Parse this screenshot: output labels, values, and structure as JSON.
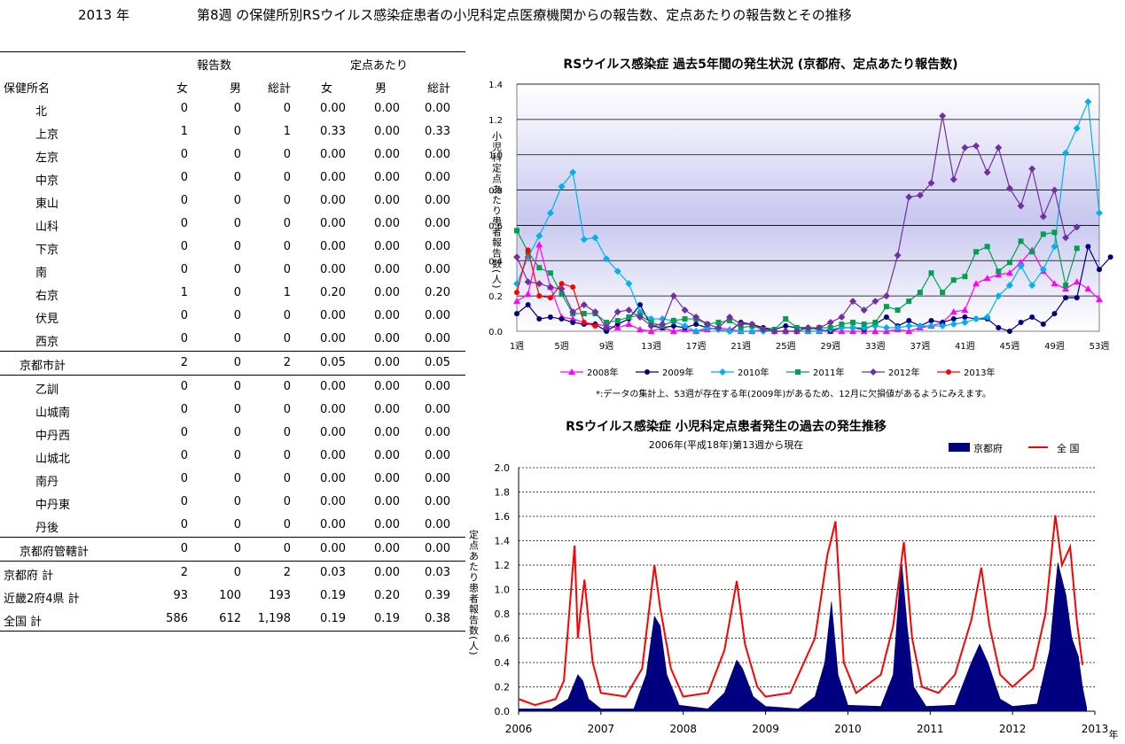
{
  "header": {
    "year": "2013 年",
    "title": "第8週 の保健所別RSウイルス感染症患者の小児科定点医療機関からの報告数、定点あたりの報告数とその推移"
  },
  "table": {
    "group_counts": "報告数",
    "group_rates": "定点あたり",
    "columns": [
      "保健所名",
      "女",
      "男",
      "総計",
      "女",
      "男",
      "総計"
    ],
    "rows": [
      {
        "name": "北",
        "vals": [
          "0",
          "0",
          "0",
          "0.00",
          "0.00",
          "0.00"
        ]
      },
      {
        "name": "上京",
        "vals": [
          "1",
          "0",
          "1",
          "0.33",
          "0.00",
          "0.33"
        ]
      },
      {
        "name": "左京",
        "vals": [
          "0",
          "0",
          "0",
          "0.00",
          "0.00",
          "0.00"
        ]
      },
      {
        "name": "中京",
        "vals": [
          "0",
          "0",
          "0",
          "0.00",
          "0.00",
          "0.00"
        ]
      },
      {
        "name": "東山",
        "vals": [
          "0",
          "0",
          "0",
          "0.00",
          "0.00",
          "0.00"
        ]
      },
      {
        "name": "山科",
        "vals": [
          "0",
          "0",
          "0",
          "0.00",
          "0.00",
          "0.00"
        ]
      },
      {
        "name": "下京",
        "vals": [
          "0",
          "0",
          "0",
          "0.00",
          "0.00",
          "0.00"
        ]
      },
      {
        "name": "南",
        "vals": [
          "0",
          "0",
          "0",
          "0.00",
          "0.00",
          "0.00"
        ]
      },
      {
        "name": "右京",
        "vals": [
          "1",
          "0",
          "1",
          "0.20",
          "0.00",
          "0.20"
        ]
      },
      {
        "name": "伏見",
        "vals": [
          "0",
          "0",
          "0",
          "0.00",
          "0.00",
          "0.00"
        ]
      },
      {
        "name": "西京",
        "vals": [
          "0",
          "0",
          "0",
          "0.00",
          "0.00",
          "0.00"
        ]
      },
      {
        "name": "京都市計",
        "vals": [
          "2",
          "0",
          "2",
          "0.05",
          "0.00",
          "0.05"
        ]
      },
      {
        "name": "乙訓",
        "vals": [
          "0",
          "0",
          "0",
          "0.00",
          "0.00",
          "0.00"
        ]
      },
      {
        "name": "山城南",
        "vals": [
          "0",
          "0",
          "0",
          "0.00",
          "0.00",
          "0.00"
        ]
      },
      {
        "name": "中丹西",
        "vals": [
          "0",
          "0",
          "0",
          "0.00",
          "0.00",
          "0.00"
        ]
      },
      {
        "name": "山城北",
        "vals": [
          "0",
          "0",
          "0",
          "0.00",
          "0.00",
          "0.00"
        ]
      },
      {
        "name": "南丹",
        "vals": [
          "0",
          "0",
          "0",
          "0.00",
          "0.00",
          "0.00"
        ]
      },
      {
        "name": "中丹東",
        "vals": [
          "0",
          "0",
          "0",
          "0.00",
          "0.00",
          "0.00"
        ]
      },
      {
        "name": "丹後",
        "vals": [
          "0",
          "0",
          "0",
          "0.00",
          "0.00",
          "0.00"
        ]
      },
      {
        "name": "京都府管轄計",
        "vals": [
          "0",
          "0",
          "0",
          "0.00",
          "0.00",
          "0.00"
        ]
      },
      {
        "name": "京都府 計",
        "vals": [
          "2",
          "0",
          "2",
          "0.03",
          "0.00",
          "0.03"
        ]
      },
      {
        "name": "近畿2府4県 計",
        "vals": [
          "93",
          "100",
          "193",
          "0.19",
          "0.20",
          "0.39"
        ]
      },
      {
        "name": "全国 計",
        "vals": [
          "586",
          "612",
          "1,198",
          "0.19",
          "0.19",
          "0.38"
        ]
      }
    ]
  },
  "chart_data": [
    {
      "type": "line",
      "title": "RSウイルス感染症 過去5年間の発生状況 (京都府、定点あたり報告数)",
      "ylabel": "小児科定点あたり患者報告数(人)",
      "ylim": [
        0,
        1.4
      ],
      "yticks": [
        "0.0",
        "0.2",
        "0.4",
        "0.6",
        "0.8",
        "1.0",
        "1.2",
        "1.4"
      ],
      "xlim": [
        1,
        53
      ],
      "xticks": [
        1,
        5,
        9,
        13,
        17,
        21,
        25,
        29,
        33,
        37,
        41,
        45,
        49,
        53
      ],
      "xtick_labels": [
        "1週",
        "5週",
        "9週",
        "13週",
        "17週",
        "21週",
        "25週",
        "29週",
        "33週",
        "37週",
        "41週",
        "45週",
        "49週",
        "53週"
      ],
      "grid": true,
      "legend_position": "bottom",
      "note": "*:データの集計上、53週が存在する年(2009年)があるため、12月に欠損値があるようにみえます。",
      "series": [
        {
          "name": "2008年",
          "color": "#ff00ff",
          "marker": "triangle",
          "values": [
            0.17,
            0.21,
            0.49,
            0.25,
            0.08,
            0.07,
            0.05,
            0.04,
            0.03,
            0.02,
            0.04,
            0.01,
            0.0,
            0.02,
            0.0,
            0.01,
            0.0,
            0.01,
            0.02,
            0.01,
            0.0,
            0.0,
            0.01,
            0.0,
            0.0,
            0.0,
            0.0,
            0.0,
            0.0,
            0.0,
            0.0,
            0.0,
            0.0,
            0.0,
            0.01,
            0.0,
            0.02,
            0.03,
            0.05,
            0.11,
            0.12,
            0.27,
            0.3,
            0.32,
            0.33,
            0.39,
            0.46,
            0.34,
            0.27,
            0.24,
            0.28,
            0.24,
            0.18
          ]
        },
        {
          "name": "2009年",
          "color": "#000080",
          "marker": "circle",
          "values": [
            0.1,
            0.15,
            0.07,
            0.08,
            0.07,
            0.05,
            0.04,
            0.04,
            0.0,
            0.04,
            0.07,
            0.15,
            0.03,
            0.02,
            0.03,
            0.02,
            0.04,
            0.02,
            0.01,
            0.0,
            0.05,
            0.04,
            0.02,
            0.01,
            0.03,
            0.02,
            0.02,
            0.01,
            0.0,
            0.02,
            0.02,
            0.01,
            0.04,
            0.08,
            0.03,
            0.06,
            0.03,
            0.06,
            0.05,
            0.07,
            0.08,
            0.07,
            0.07,
            0.02,
            0.0,
            0.05,
            0.08,
            0.04,
            0.1,
            0.19,
            0.19,
            0.48,
            0.35,
            0.42
          ]
        },
        {
          "name": "2010年",
          "color": "#00b0f0",
          "marker": "diamond",
          "values": [
            0.27,
            0.42,
            0.54,
            0.67,
            0.82,
            0.9,
            0.52,
            0.53,
            0.41,
            0.34,
            0.27,
            0.11,
            0.07,
            0.07,
            0.06,
            0.03,
            0.0,
            0.02,
            0.01,
            0.0,
            0.0,
            0.0,
            0.0,
            0.0,
            0.0,
            0.0,
            0.0,
            0.0,
            0.01,
            0.02,
            0.02,
            0.02,
            0.03,
            0.02,
            0.02,
            0.03,
            0.03,
            0.03,
            0.03,
            0.04,
            0.05,
            0.07,
            0.08,
            0.2,
            0.26,
            0.37,
            0.26,
            0.35,
            0.48,
            1.01,
            1.15,
            1.3,
            0.67
          ]
        },
        {
          "name": "2011年",
          "color": "#00a050",
          "marker": "square",
          "values": [
            0.57,
            0.45,
            0.36,
            0.33,
            0.21,
            0.1,
            0.1,
            0.1,
            0.05,
            0.06,
            0.08,
            0.09,
            0.05,
            0.03,
            0.06,
            0.07,
            0.07,
            0.04,
            0.05,
            0.06,
            0.02,
            0.03,
            0.01,
            0.01,
            0.07,
            0.02,
            0.01,
            0.02,
            0.02,
            0.04,
            0.05,
            0.04,
            0.05,
            0.14,
            0.12,
            0.17,
            0.22,
            0.33,
            0.22,
            0.29,
            0.31,
            0.45,
            0.48,
            0.34,
            0.39,
            0.51,
            0.45,
            0.55,
            0.56,
            0.26,
            0.47
          ]
        },
        {
          "name": "2012年",
          "color": "#7030a0",
          "marker": "diamond",
          "values": [
            0.42,
            0.28,
            0.27,
            0.25,
            0.24,
            0.11,
            0.15,
            0.11,
            0.02,
            0.11,
            0.12,
            0.08,
            0.03,
            0.04,
            0.2,
            0.12,
            0.08,
            0.04,
            0.02,
            0.08,
            0.04,
            0.04,
            0.01,
            0.0,
            0.0,
            0.0,
            0.02,
            0.02,
            0.05,
            0.08,
            0.17,
            0.12,
            0.17,
            0.2,
            0.43,
            0.76,
            0.77,
            0.84,
            1.22,
            0.86,
            1.04,
            1.05,
            0.9,
            1.04,
            0.81,
            0.71,
            0.92,
            0.65,
            0.8,
            0.53,
            0.59
          ]
        },
        {
          "name": "2013年",
          "color": "#ff0000",
          "marker": "circle",
          "values": [
            0.22,
            0.46,
            0.2,
            0.19,
            0.27,
            0.25,
            0.05,
            0.03
          ]
        }
      ]
    },
    {
      "type": "area",
      "title": "RSウイルス感染症 小児科定点患者発生の過去の発生推移",
      "subtitle": "2006年(平成18年)第13週から現在",
      "ylabel": "定点あたり患者報告数(人)",
      "xlabel": "年",
      "ylim": [
        0,
        2.0
      ],
      "yticks": [
        "0.0",
        "0.2",
        "0.4",
        "0.6",
        "0.8",
        "1.0",
        "1.2",
        "1.4",
        "1.6",
        "1.8",
        "2.0"
      ],
      "xlim": [
        2006,
        2013
      ],
      "xticks": [
        "2006",
        "2007",
        "2008",
        "2009",
        "2010",
        "2011",
        "2012",
        "2013"
      ],
      "grid": true,
      "legend_position": "top-right",
      "series": [
        {
          "name": "京都府",
          "color": "#000080",
          "style": "area",
          "points": [
            [
              2006.0,
              0.02
            ],
            [
              2006.4,
              0.02
            ],
            [
              2006.6,
              0.1
            ],
            [
              2006.72,
              0.3
            ],
            [
              2006.78,
              0.25
            ],
            [
              2006.85,
              0.1
            ],
            [
              2007.0,
              0.02
            ],
            [
              2007.4,
              0.02
            ],
            [
              2007.55,
              0.3
            ],
            [
              2007.65,
              0.78
            ],
            [
              2007.72,
              0.7
            ],
            [
              2007.8,
              0.3
            ],
            [
              2007.95,
              0.05
            ],
            [
              2008.3,
              0.02
            ],
            [
              2008.5,
              0.15
            ],
            [
              2008.65,
              0.42
            ],
            [
              2008.72,
              0.35
            ],
            [
              2008.85,
              0.12
            ],
            [
              2009.0,
              0.04
            ],
            [
              2009.4,
              0.02
            ],
            [
              2009.6,
              0.12
            ],
            [
              2009.72,
              0.4
            ],
            [
              2009.8,
              0.9
            ],
            [
              2009.88,
              0.3
            ],
            [
              2010.0,
              0.05
            ],
            [
              2010.4,
              0.04
            ],
            [
              2010.55,
              0.3
            ],
            [
              2010.65,
              1.25
            ],
            [
              2010.72,
              0.7
            ],
            [
              2010.8,
              0.2
            ],
            [
              2010.95,
              0.04
            ],
            [
              2011.3,
              0.05
            ],
            [
              2011.5,
              0.4
            ],
            [
              2011.6,
              0.55
            ],
            [
              2011.7,
              0.4
            ],
            [
              2011.85,
              0.1
            ],
            [
              2012.0,
              0.04
            ],
            [
              2012.3,
              0.06
            ],
            [
              2012.45,
              0.5
            ],
            [
              2012.55,
              1.22
            ],
            [
              2012.65,
              0.95
            ],
            [
              2012.72,
              0.6
            ],
            [
              2012.8,
              0.45
            ],
            [
              2012.85,
              0.2
            ],
            [
              2012.9,
              0.03
            ]
          ]
        },
        {
          "name": "全 国",
          "color": "#ff0000",
          "style": "line",
          "points": [
            [
              2006.0,
              0.1
            ],
            [
              2006.2,
              0.05
            ],
            [
              2006.45,
              0.1
            ],
            [
              2006.55,
              0.25
            ],
            [
              2006.68,
              1.36
            ],
            [
              2006.72,
              0.6
            ],
            [
              2006.75,
              0.8
            ],
            [
              2006.8,
              1.08
            ],
            [
              2006.9,
              0.4
            ],
            [
              2007.0,
              0.15
            ],
            [
              2007.3,
              0.12
            ],
            [
              2007.5,
              0.35
            ],
            [
              2007.65,
              1.2
            ],
            [
              2007.72,
              0.85
            ],
            [
              2007.85,
              0.35
            ],
            [
              2008.0,
              0.12
            ],
            [
              2008.3,
              0.15
            ],
            [
              2008.5,
              0.5
            ],
            [
              2008.65,
              1.07
            ],
            [
              2008.75,
              0.55
            ],
            [
              2008.9,
              0.2
            ],
            [
              2009.0,
              0.12
            ],
            [
              2009.3,
              0.15
            ],
            [
              2009.6,
              0.6
            ],
            [
              2009.75,
              1.28
            ],
            [
              2009.85,
              1.56
            ],
            [
              2009.95,
              0.4
            ],
            [
              2010.1,
              0.15
            ],
            [
              2010.4,
              0.3
            ],
            [
              2010.55,
              0.7
            ],
            [
              2010.68,
              1.39
            ],
            [
              2010.78,
              0.6
            ],
            [
              2010.9,
              0.2
            ],
            [
              2011.1,
              0.15
            ],
            [
              2011.3,
              0.3
            ],
            [
              2011.5,
              0.75
            ],
            [
              2011.62,
              1.18
            ],
            [
              2011.72,
              0.7
            ],
            [
              2011.85,
              0.3
            ],
            [
              2012.0,
              0.2
            ],
            [
              2012.25,
              0.35
            ],
            [
              2012.4,
              0.8
            ],
            [
              2012.52,
              1.61
            ],
            [
              2012.6,
              1.2
            ],
            [
              2012.7,
              1.35
            ],
            [
              2012.78,
              0.75
            ],
            [
              2012.85,
              0.38
            ]
          ]
        }
      ]
    }
  ]
}
